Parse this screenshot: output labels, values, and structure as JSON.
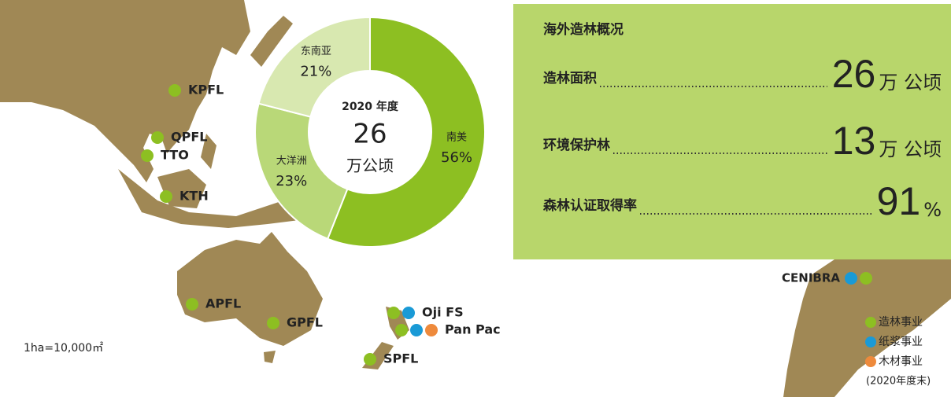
{
  "chart_data": {
    "type": "donut",
    "categories": [
      "南美",
      "大洋洲",
      "东南亚"
    ],
    "values": [
      56,
      23,
      21
    ],
    "value_labels": [
      "56%",
      "23%",
      "21%"
    ],
    "colors": [
      "#8dbf22",
      "#b9d878",
      "#d8e8b0"
    ],
    "center": {
      "year": "2020 年度",
      "value": "26",
      "unit": "万公顷"
    }
  },
  "info_box": {
    "title": "海外造林概况",
    "rows": [
      {
        "label": "造林面积",
        "value": "26",
        "unit": "万 公顷"
      },
      {
        "label": "环境保护林",
        "value": "13",
        "unit": "万 公顷"
      },
      {
        "label": "森林认证取得率",
        "value": "91",
        "unit": "%"
      }
    ]
  },
  "sites": [
    {
      "name": "KPFL",
      "colors": [
        "#8dbf22"
      ]
    },
    {
      "name": "QPFL",
      "colors": [
        "#8dbf22"
      ]
    },
    {
      "name": "TTO",
      "colors": [
        "#8dbf22"
      ]
    },
    {
      "name": "KTH",
      "colors": [
        "#8dbf22"
      ]
    },
    {
      "name": "APFL",
      "colors": [
        "#8dbf22"
      ]
    },
    {
      "name": "GPFL",
      "colors": [
        "#8dbf22"
      ]
    },
    {
      "name": "Oji FS",
      "colors": [
        "#8dbf22",
        "#1a9ad6"
      ]
    },
    {
      "name": "Pan Pac",
      "colors": [
        "#8dbf22",
        "#1a9ad6",
        "#ee8a3c"
      ]
    },
    {
      "name": "SPFL",
      "colors": [
        "#8dbf22"
      ]
    },
    {
      "name": "CENIBRA",
      "colors": [
        "#1a9ad6",
        "#8dbf22"
      ]
    }
  ],
  "legend": {
    "items": [
      {
        "name": "造林事业",
        "color": "#8dbf22"
      },
      {
        "name": "纸浆事业",
        "color": "#1a9ad6"
      },
      {
        "name": "木材事业",
        "color": "#ee8a3c"
      }
    ],
    "note": "(2020年度末)"
  },
  "note": "1ha=10,000㎡"
}
